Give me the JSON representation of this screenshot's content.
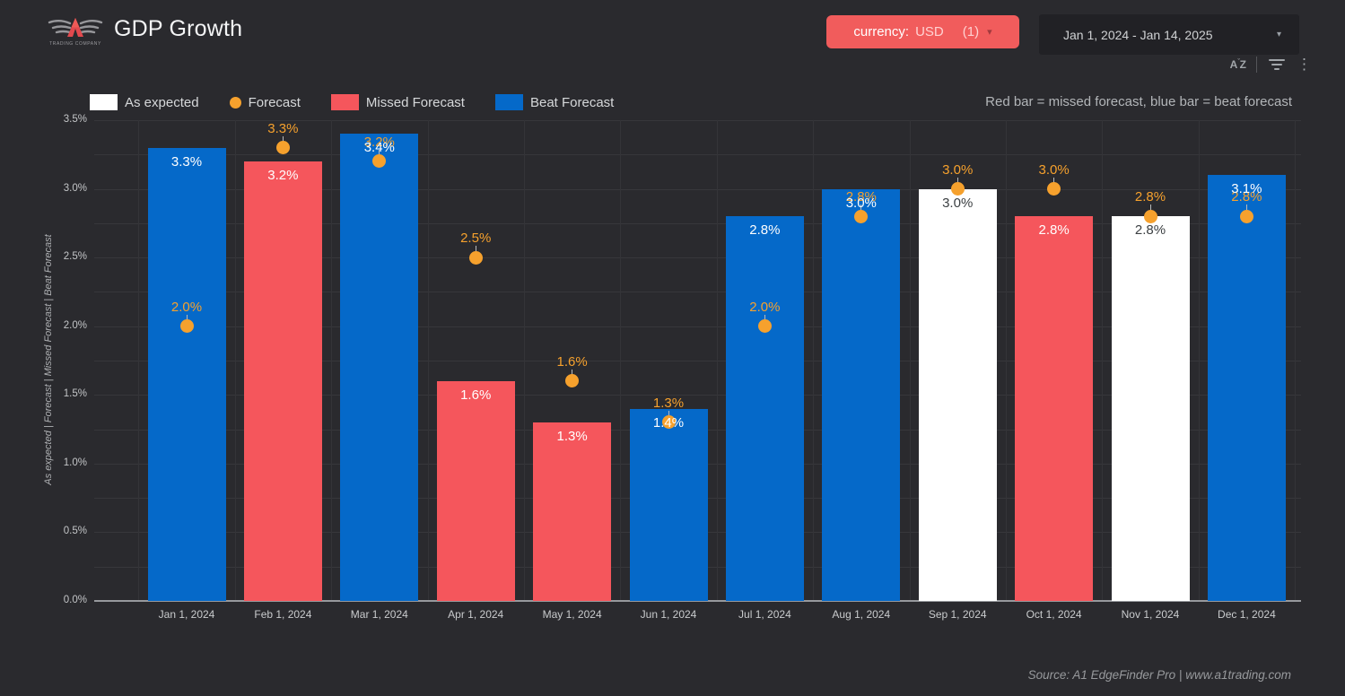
{
  "header": {
    "logo": {
      "subtext": "TRADING COMPANY"
    },
    "title": "GDP Growth",
    "currency_button": {
      "label": "currency:",
      "value": "USD",
      "count": "(1)",
      "caret": "▾"
    },
    "date_range": "Jan 1, 2024 - Jan 14, 2025",
    "toolbar": {
      "sort_icon_text": "AZ",
      "icons": [
        "sort-az",
        "filter",
        "more-vertical"
      ]
    }
  },
  "legend": {
    "items": [
      {
        "label": "As expected",
        "swatch": "white"
      },
      {
        "label": "Forecast",
        "swatch": "dot"
      },
      {
        "label": "Missed Forecast",
        "swatch": "red"
      },
      {
        "label": "Beat Forecast",
        "swatch": "blue"
      }
    ]
  },
  "note": "Red bar = missed forecast, blue bar = beat forecast",
  "chart_data": {
    "type": "bar",
    "title": "GDP Growth",
    "categories": [
      "Jan 1, 2024",
      "Feb 1, 2024",
      "Mar 1, 2024",
      "Apr 1, 2024",
      "May 1, 2024",
      "Jun 1, 2024",
      "Jul 1, 2024",
      "Aug 1, 2024",
      "Sep 1, 2024",
      "Oct 1, 2024",
      "Nov 1, 2024",
      "Dec 1, 2024"
    ],
    "series": [
      {
        "name": "GDP Growth (actual)",
        "type": "bar",
        "values": [
          3.3,
          3.2,
          3.4,
          1.6,
          1.3,
          1.4,
          2.8,
          3.0,
          3.0,
          2.8,
          2.8,
          3.1
        ],
        "status": [
          "beat",
          "missed",
          "beat",
          "missed",
          "missed",
          "beat",
          "beat",
          "beat",
          "as_expected",
          "missed",
          "as_expected",
          "beat"
        ]
      },
      {
        "name": "Forecast",
        "type": "scatter",
        "values": [
          2.0,
          3.3,
          3.2,
          2.5,
          1.6,
          1.3,
          2.0,
          2.8,
          3.0,
          3.0,
          2.8,
          2.8
        ]
      }
    ],
    "ylabel": "As expected | Forecast | Missed Forecast | Beat Forecast",
    "xlabel": "",
    "ylim": [
      0,
      3.5
    ],
    "ytick_labels": [
      "0.0%",
      "0.5%",
      "1.0%",
      "1.5%",
      "2.0%",
      "2.5%",
      "3.0%",
      "3.5%"
    ],
    "grid": {
      "major_step": 0.5,
      "minor_step": 0.25,
      "vertical": true
    },
    "legend_position": "top",
    "colors": {
      "beat": "#0569c9",
      "missed": "#f5565c",
      "as_expected": "#ffffff",
      "forecast": "#f6a12d",
      "label_on_bar": "#ffffff",
      "label_on_white_bar": "#3c4043"
    }
  },
  "source": "Source: A1 EdgeFinder Pro | www.a1trading.com"
}
